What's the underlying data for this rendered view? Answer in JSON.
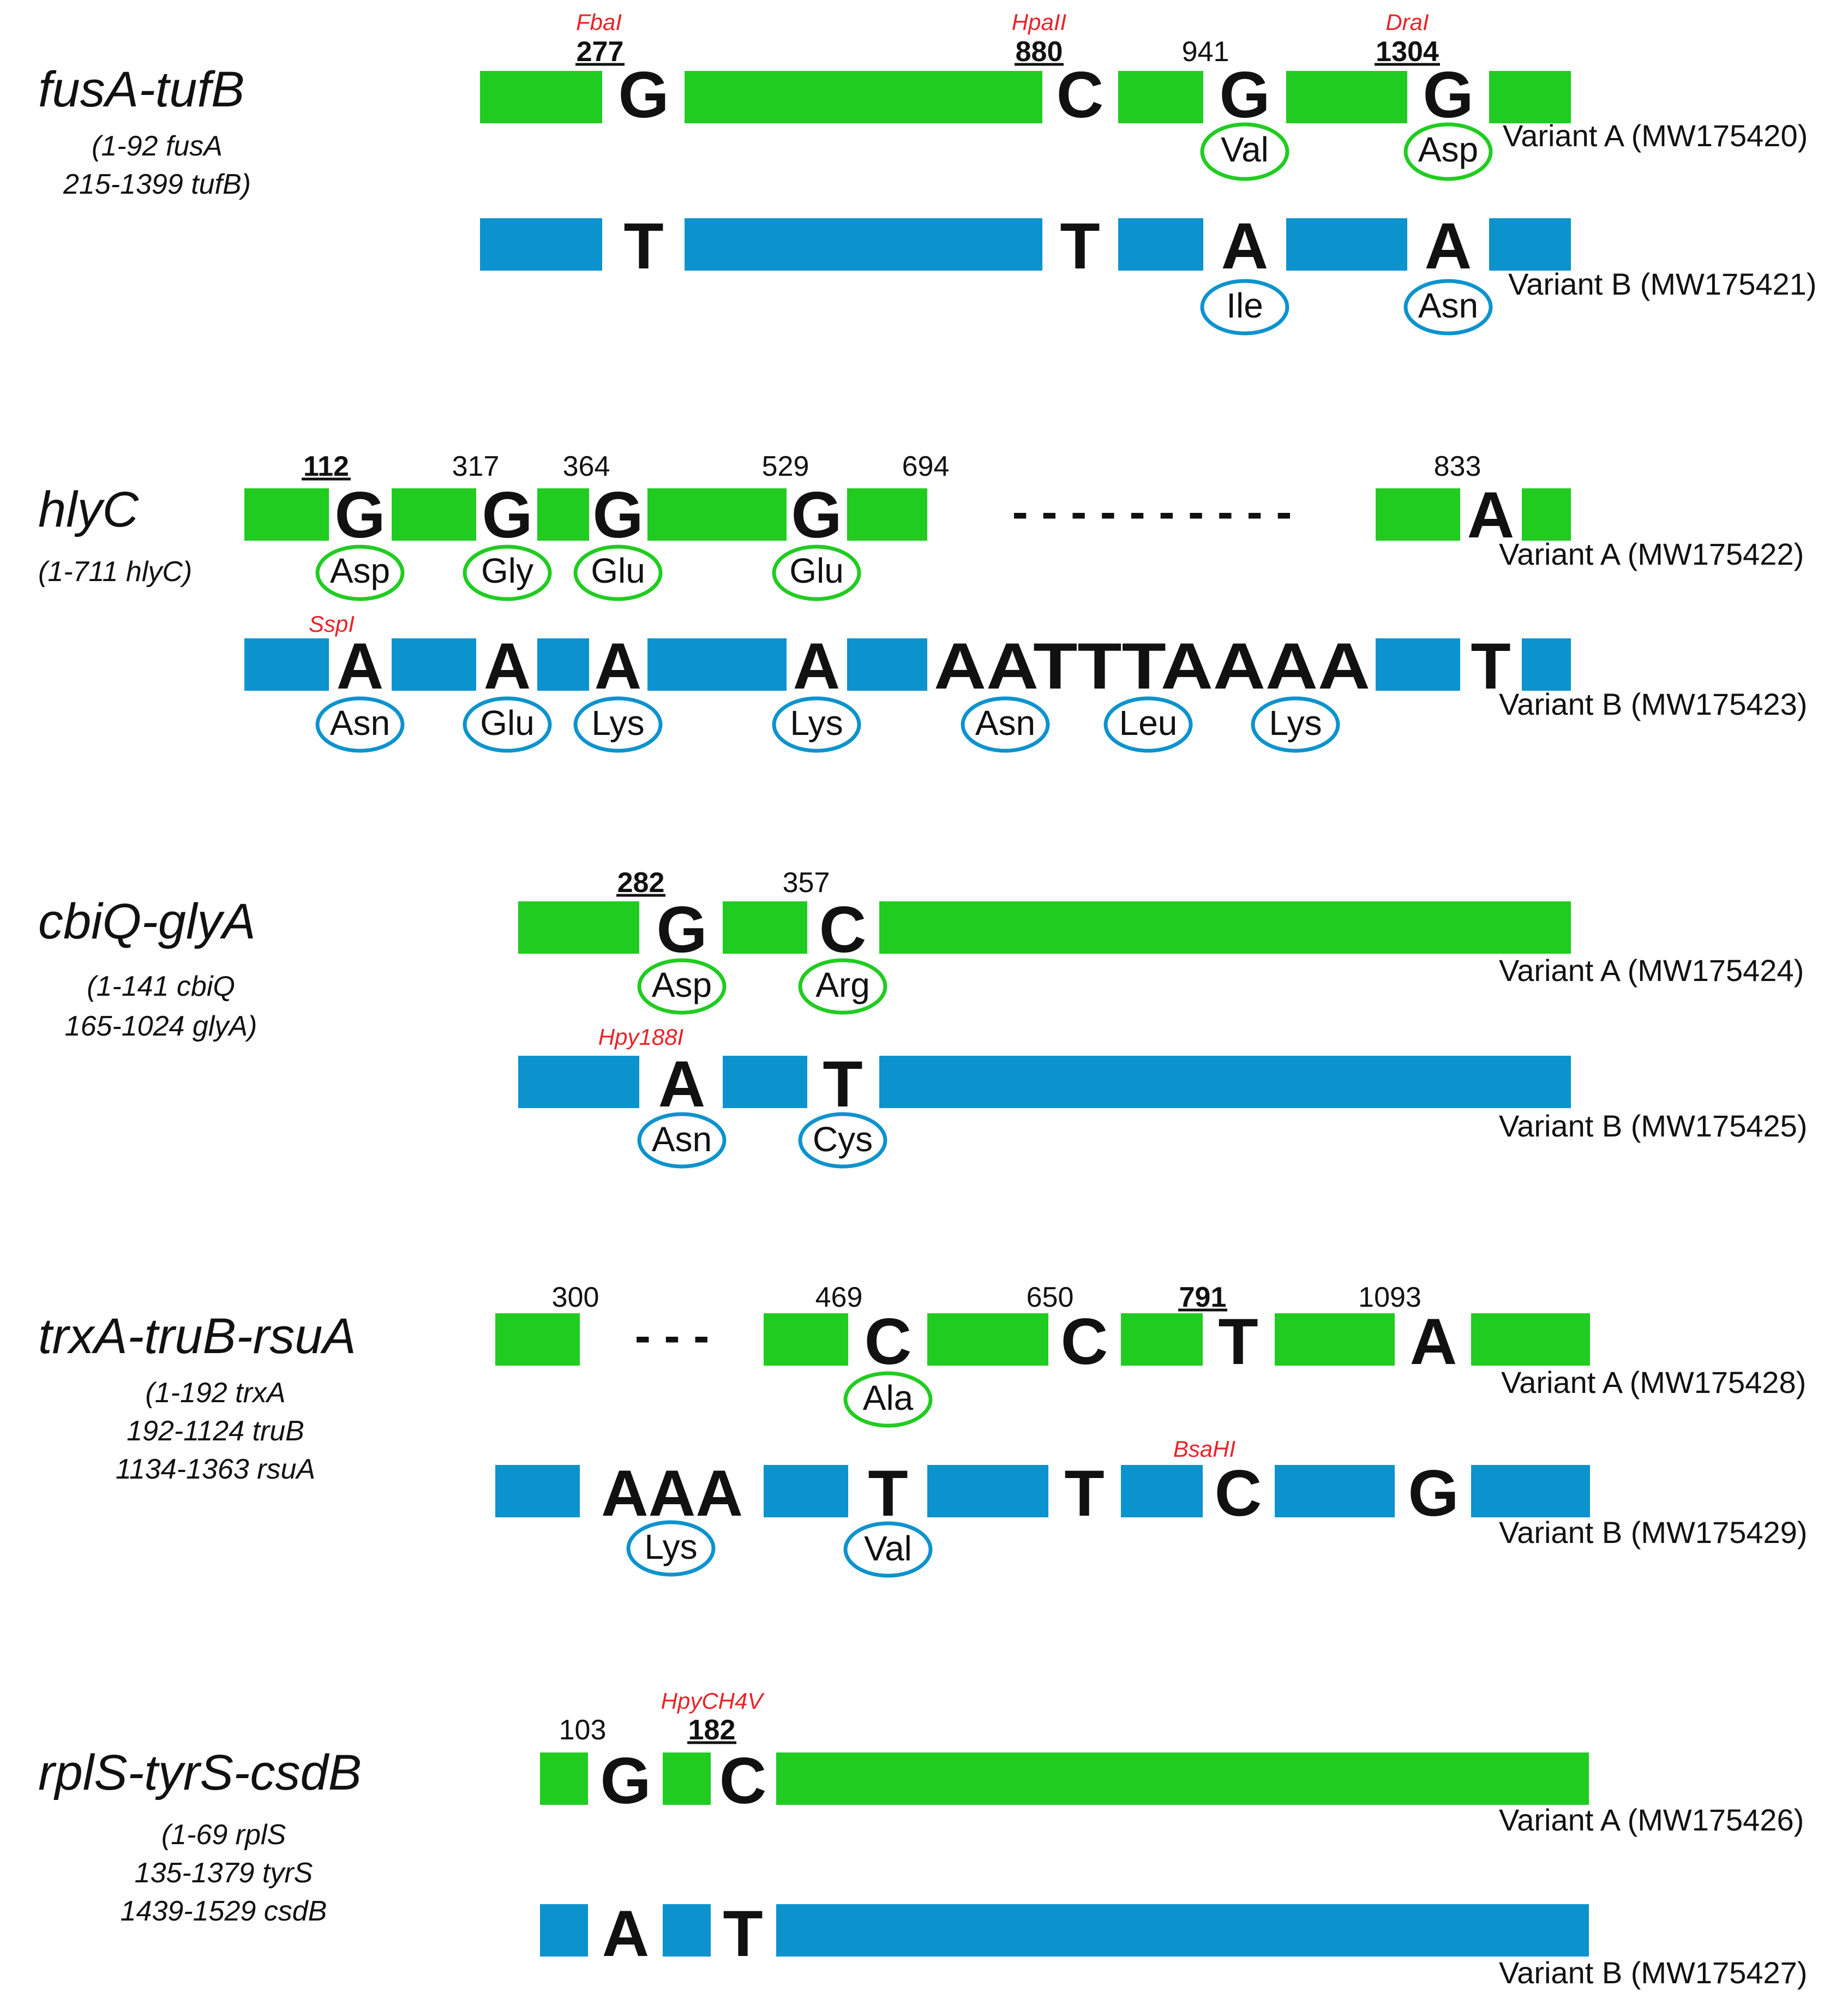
{
  "colors": {
    "variant_a": "#21cc21",
    "variant_b": "#0c93cd",
    "enzyme": "#e8242a",
    "text": "#111111"
  },
  "panels": [
    {
      "gene": "fusA-tufB",
      "range_lines": [
        "(1-92 fusA",
        "215-1399 tufB)"
      ],
      "positions": [
        {
          "label": "277",
          "bold": true,
          "enzyme": "FbaI"
        },
        {
          "label": "880",
          "bold": true,
          "enzyme": "HpaII"
        },
        {
          "label": "941",
          "bold": false,
          "enzyme": ""
        },
        {
          "label": "1304",
          "bold": true,
          "enzyme": "DraI"
        }
      ],
      "variant_a": {
        "label": "Variant A (MW175420)",
        "bases": [
          "G",
          "C",
          "G",
          "G"
        ],
        "amino_acids": [
          "Val",
          "Asp"
        ],
        "enzymes": []
      },
      "variant_b": {
        "label": "Variant B (MW175421)",
        "bases": [
          "T",
          "T",
          "A",
          "A"
        ],
        "amino_acids": [
          "Ile",
          "Asn"
        ],
        "enzymes": []
      }
    },
    {
      "gene": "hlyC",
      "range_lines": [
        "(1-711 hlyC)"
      ],
      "positions": [
        {
          "label": "112",
          "bold": true,
          "enzyme": ""
        },
        {
          "label": "317",
          "bold": false,
          "enzyme": ""
        },
        {
          "label": "364",
          "bold": false,
          "enzyme": ""
        },
        {
          "label": "529",
          "bold": false,
          "enzyme": ""
        },
        {
          "label": "694",
          "bold": false,
          "enzyme": ""
        },
        {
          "label": "833",
          "bold": false,
          "enzyme": ""
        }
      ],
      "variant_a": {
        "label": "Variant A (MW175422)",
        "bases": [
          "G",
          "G",
          "G",
          "G",
          "- - - - - - - - - -",
          "A"
        ],
        "amino_acids": [
          "Asp",
          "Gly",
          "Glu",
          "Glu"
        ],
        "enzymes": []
      },
      "variant_b": {
        "label": "Variant B (MW175423)",
        "bases": [
          "A",
          "A",
          "A",
          "A",
          "AATTTAAAA",
          "T"
        ],
        "amino_acids": [
          "Asn",
          "Glu",
          "Lys",
          "Lys",
          "Asn",
          "Leu",
          "Lys"
        ],
        "enzymes": [
          "SspI"
        ]
      }
    },
    {
      "gene": "cbiQ-glyA",
      "range_lines": [
        "(1-141 cbiQ",
        "165-1024 glyA)"
      ],
      "positions": [
        {
          "label": "282",
          "bold": true,
          "enzyme": ""
        },
        {
          "label": "357",
          "bold": false,
          "enzyme": ""
        }
      ],
      "variant_a": {
        "label": "Variant A (MW175424)",
        "bases": [
          "G",
          "C"
        ],
        "amino_acids": [
          "Asp",
          "Arg"
        ],
        "enzymes": []
      },
      "variant_b": {
        "label": "Variant B (MW175425)",
        "bases": [
          "A",
          "T"
        ],
        "amino_acids": [
          "Asn",
          "Cys"
        ],
        "enzymes": [
          "Hpy188I"
        ]
      }
    },
    {
      "gene": "trxA-truB-rsuA",
      "range_lines": [
        "(1-192 trxA",
        "192-1124 truB",
        "1134-1363 rsuA"
      ],
      "positions": [
        {
          "label": "300",
          "bold": false,
          "enzyme": ""
        },
        {
          "label": "469",
          "bold": false,
          "enzyme": ""
        },
        {
          "label": "650",
          "bold": false,
          "enzyme": ""
        },
        {
          "label": "791",
          "bold": true,
          "enzyme": ""
        },
        {
          "label": "1093",
          "bold": false,
          "enzyme": ""
        }
      ],
      "variant_a": {
        "label": "Variant A (MW175428)",
        "bases": [
          "- - -",
          "C",
          "C",
          "T",
          "A"
        ],
        "amino_acids": [
          "Ala"
        ],
        "enzymes": []
      },
      "variant_b": {
        "label": "Variant B (MW175429)",
        "bases": [
          "AAA",
          "T",
          "T",
          "C",
          "G"
        ],
        "amino_acids": [
          "Lys",
          "Val"
        ],
        "enzymes": [
          "BsaHI"
        ]
      }
    },
    {
      "gene": "rplS-tyrS-csdB",
      "range_lines": [
        "(1-69 rplS",
        "135-1379 tyrS",
        "1439-1529 csdB"
      ],
      "positions": [
        {
          "label": "103",
          "bold": false,
          "enzyme": ""
        },
        {
          "label": "182",
          "bold": true,
          "enzyme": "HpyCH4V"
        }
      ],
      "variant_a": {
        "label": "Variant A (MW175426)",
        "bases": [
          "G",
          "C"
        ],
        "amino_acids": [],
        "enzymes": []
      },
      "variant_b": {
        "label": "Variant B (MW175427)",
        "bases": [
          "A",
          "T"
        ],
        "amino_acids": [],
        "enzymes": []
      }
    }
  ]
}
